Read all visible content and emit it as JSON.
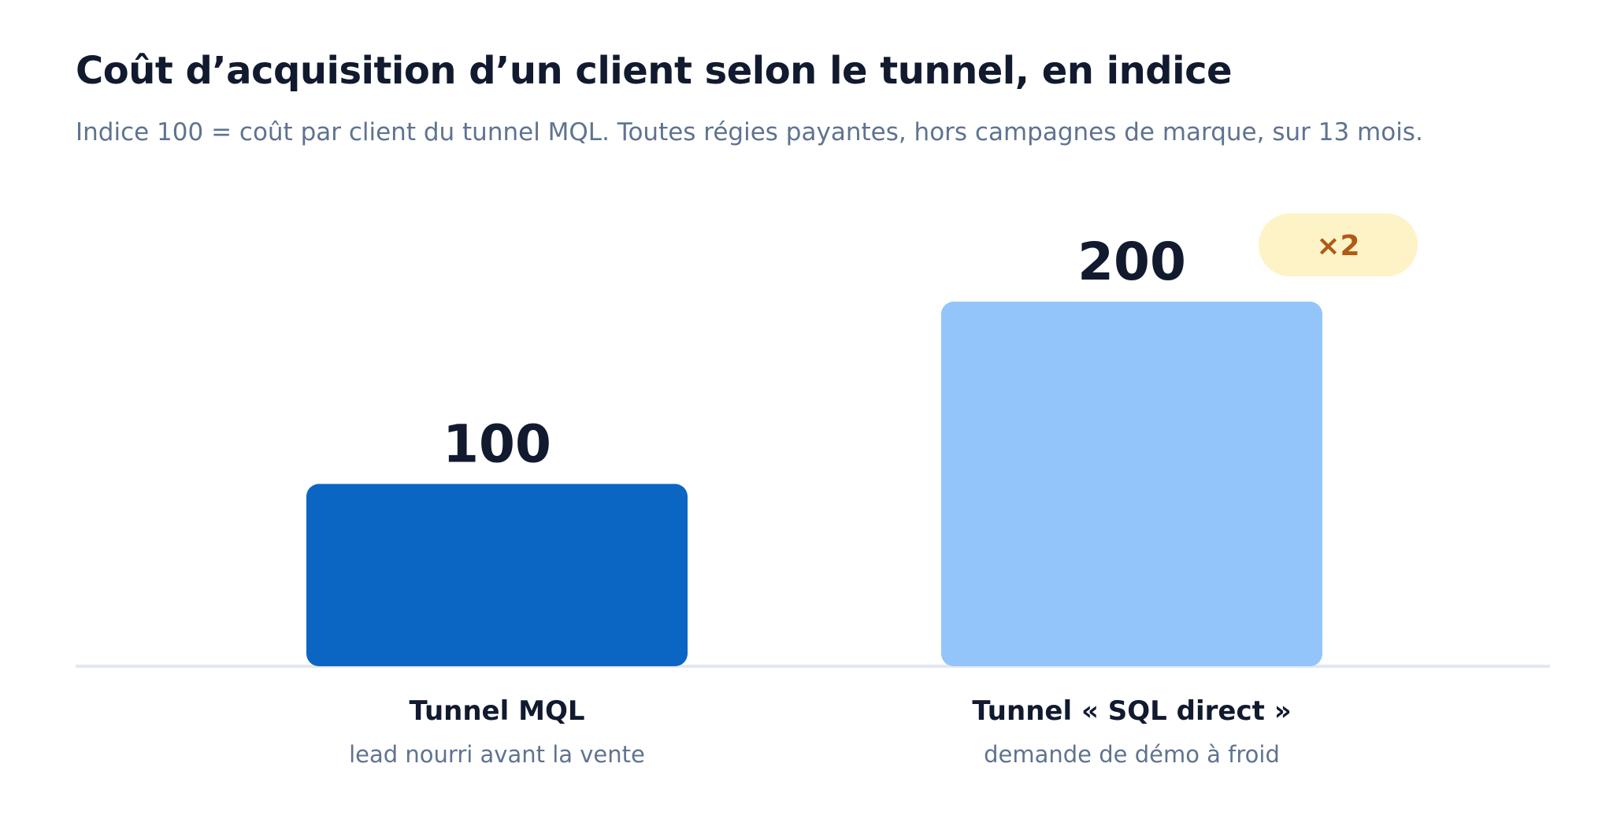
{
  "title": "Coût d’acquisition d’un client selon le tunnel, en indice",
  "subtitle": "Indice 100 = coût par client du tunnel MQL. Toutes régies payantes, hors campagnes de marque, sur 13 mois.",
  "chart_data": {
    "type": "bar",
    "categories": [
      "Tunnel MQL",
      "Tunnel « SQL direct »"
    ],
    "category_sublabels": [
      "lead nourri avant la vente",
      "demande de démo à froid"
    ],
    "values": [
      100,
      200
    ],
    "value_labels": [
      "100",
      "200"
    ],
    "ylim": [
      0,
      200
    ],
    "grid": false,
    "legend": "none",
    "colors": [
      "#0b66c3",
      "#93c5fb"
    ],
    "annotation": {
      "text": "×2",
      "attached_to": "Tunnel « SQL direct »",
      "background": "#fdf3c7",
      "color": "#b05a14"
    }
  },
  "colors": {
    "title": "#111a2e",
    "muted": "#5f7390",
    "axis": "#e3e8ef"
  }
}
